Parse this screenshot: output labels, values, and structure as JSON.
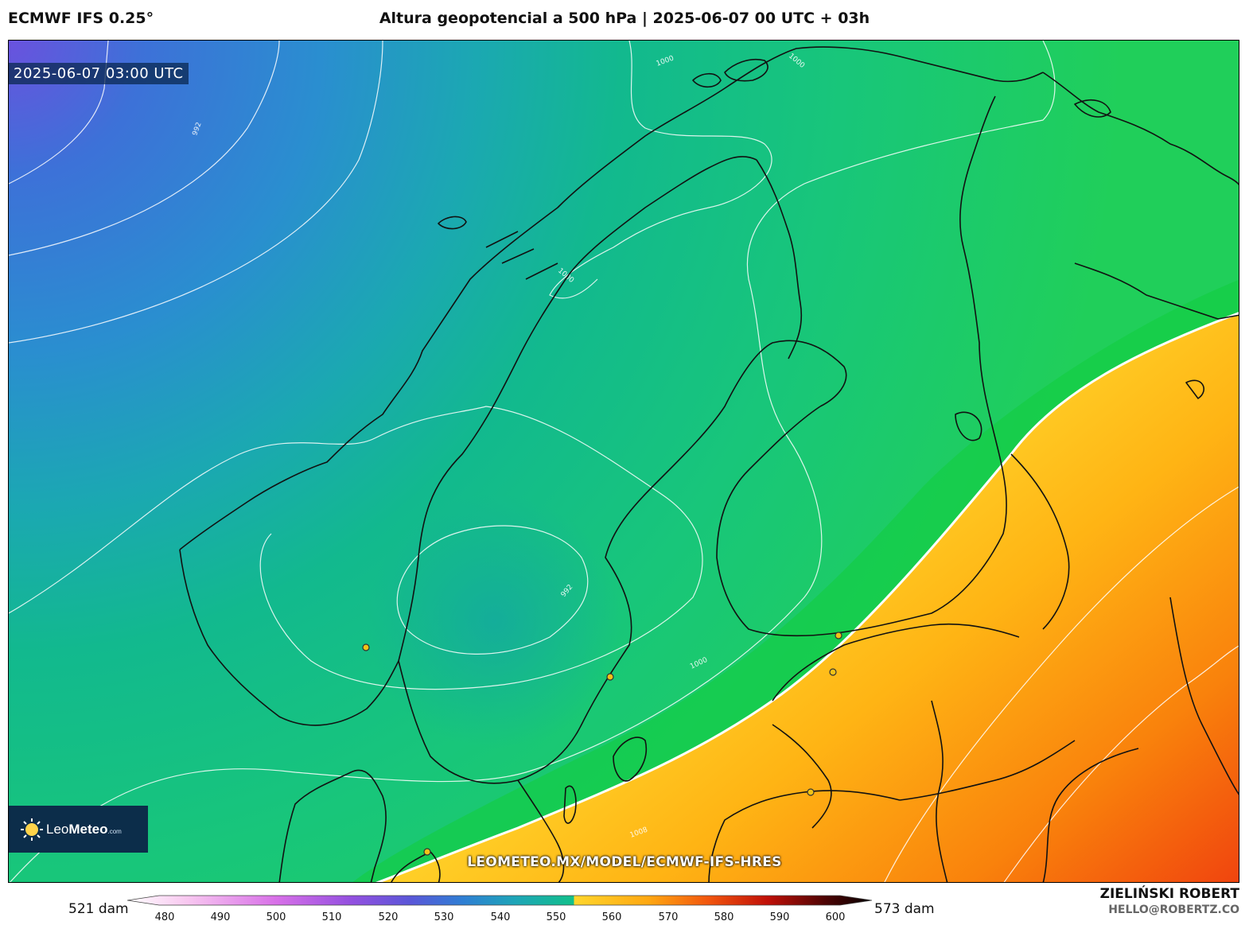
{
  "header": {
    "model": "ECMWF IFS 0.25°",
    "title": "Altura geopotencial a 500 hPa | 2025-06-07 00 UTC + 03h"
  },
  "map": {
    "valid_time": "2025-06-07 03:00 UTC",
    "watermark": "LEOMETEO.MX/MODEL/ECMWF-IFS-HRES",
    "isobar_labels": [
      "992",
      "1000",
      "1000",
      "1000",
      "992",
      "1000",
      "1008"
    ],
    "logo": {
      "brand_light": "Leo",
      "brand_bold": "Meteo",
      "suffix": ".com"
    },
    "colors": {
      "low": "#6b55e0",
      "mid": "#12c08a",
      "ridge": "#ffd12a",
      "high": "#f24a10"
    }
  },
  "colorbar": {
    "min_label": "521 dam",
    "max_label": "573 dam",
    "ticks": [
      "480",
      "490",
      "500",
      "510",
      "520",
      "530",
      "540",
      "550",
      "560",
      "570",
      "580",
      "590",
      "600"
    ]
  },
  "author": {
    "name": "ZIELIŃSKI ROBERT",
    "email": "HELLO@ROBERTZ.CO"
  }
}
